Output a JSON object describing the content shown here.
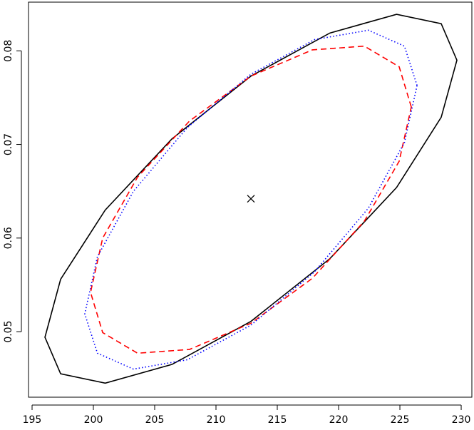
{
  "chart_data": {
    "type": "line",
    "xlim": [
      194.71,
      230.87
    ],
    "ylim": [
      0.043,
      0.0852
    ],
    "xticks": [
      195,
      200,
      205,
      210,
      215,
      220,
      225,
      230
    ],
    "yticks": [
      0.05,
      0.06,
      0.07,
      0.08
    ],
    "series": [
      {
        "color": "#000000",
        "dash": "solid",
        "x": [
          229.65,
          228.37,
          224.73,
          219.29,
          212.85,
          206.41,
          200.97,
          197.33,
          196.05,
          197.33,
          200.97,
          206.41,
          212.85,
          219.29,
          224.73,
          228.37
        ],
        "y": [
          0.079,
          0.0829,
          0.0839,
          0.0819,
          0.0773,
          0.0706,
          0.063,
          0.0556,
          0.0494,
          0.0455,
          0.0445,
          0.0465,
          0.0511,
          0.0578,
          0.0654,
          0.0729
        ]
      },
      {
        "color": "#ff0000",
        "dash": "dashed",
        "x": [
          225.93,
          224.94,
          222.1,
          217.86,
          212.85,
          207.84,
          203.6,
          200.76,
          199.77,
          200.76,
          203.6,
          207.84,
          212.85,
          217.86,
          222.1,
          224.94
        ],
        "y": [
          0.074,
          0.0783,
          0.0805,
          0.0801,
          0.0773,
          0.0725,
          0.0665,
          0.06,
          0.0542,
          0.0499,
          0.0477,
          0.0481,
          0.0509,
          0.0557,
          0.0618,
          0.0682
        ]
      },
      {
        "color": "#0000ff",
        "dash": "dotted",
        "x": [
          226.4,
          225.37,
          222.43,
          218.04,
          212.85,
          207.66,
          203.27,
          200.33,
          199.3,
          200.33,
          203.27,
          207.66,
          212.85,
          218.04,
          222.43,
          225.37
        ],
        "y": [
          0.0763,
          0.0805,
          0.0822,
          0.0812,
          0.0775,
          0.0718,
          0.065,
          0.058,
          0.0519,
          0.0477,
          0.046,
          0.047,
          0.0507,
          0.0564,
          0.0632,
          0.0702
        ]
      }
    ],
    "points": {
      "color": "#000000",
      "x": [
        212.85
      ],
      "y": [
        0.0642
      ]
    }
  }
}
